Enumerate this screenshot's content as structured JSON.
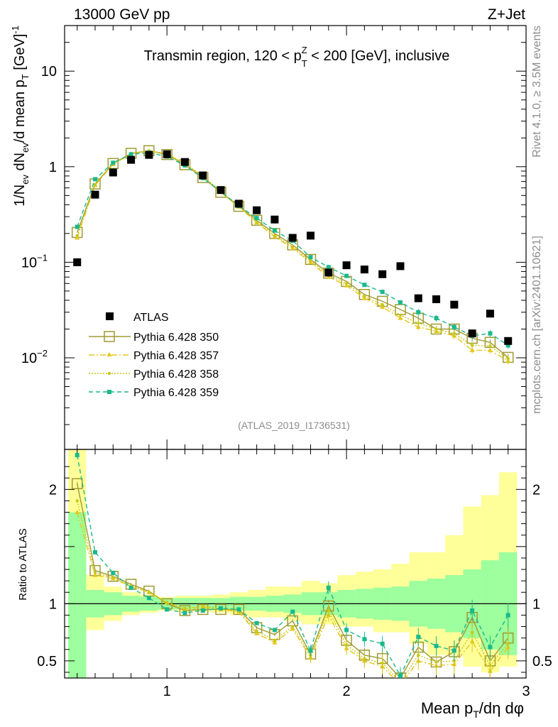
{
  "header": {
    "left": "13000 GeV pp",
    "right": "Z+Jet",
    "side_top": "Rivet 4.1.0, ≥ 3.5M events",
    "side_bottom": "mcplots.cern.ch [arXiv:2401.10621]",
    "analysis_tag": "(ATLAS_2019_I1736531)"
  },
  "colors": {
    "atlas": "#000000",
    "p350": "#a09a32",
    "p357": "#e6c619",
    "p358": "#c8c814",
    "p359": "#19b98c",
    "band_inner": "#9dff9d",
    "band_outer": "#ffff9a"
  },
  "chart_data": [
    {
      "type": "scatter",
      "title": "Transmin region, 120 < p_T^Z < 200 [GeV], inclusive",
      "title_parts": {
        "pre": "Transmin region, 120 < p",
        "sup": "Z",
        "sub": "T",
        "post": " < 200 [GeV], inclusive"
      },
      "ylabel": "1/N_ev dN_ev/d mean p_T [GeV]^-1",
      "yscale": "log",
      "ylim": [
        0.0011,
        30
      ],
      "xlim": [
        0.43,
        3.0
      ],
      "y_ticks": [
        {
          "v": 10,
          "label": "10"
        },
        {
          "v": 1,
          "label": "1"
        },
        {
          "v": 0.1,
          "label": "10",
          "exp": "−1"
        },
        {
          "v": 0.01,
          "label": "10",
          "exp": "−2"
        }
      ],
      "x": [
        0.5,
        0.6,
        0.7,
        0.8,
        0.9,
        1.0,
        1.1,
        1.2,
        1.3,
        1.4,
        1.5,
        1.6,
        1.7,
        1.8,
        1.9,
        2.0,
        2.1,
        2.2,
        2.3,
        2.4,
        2.5,
        2.6,
        2.7,
        2.8,
        2.9
      ],
      "series": [
        {
          "name": "ATLAS",
          "key": "atlas",
          "values": [
            0.1,
            0.51,
            0.87,
            1.18,
            1.33,
            1.35,
            1.12,
            0.81,
            0.57,
            0.41,
            0.35,
            0.28,
            0.18,
            0.19,
            0.078,
            0.093,
            0.084,
            0.075,
            0.091,
            0.042,
            0.041,
            0.036,
            0.018,
            0.029,
            0.015
          ]
        },
        {
          "name": "Pythia 6.428 350",
          "key": "p350",
          "values": [
            0.205,
            0.66,
            1.08,
            1.38,
            1.47,
            1.34,
            1.05,
            0.77,
            0.54,
            0.385,
            0.275,
            0.2,
            0.152,
            0.107,
            0.077,
            0.063,
            0.046,
            0.039,
            0.032,
            0.026,
            0.02,
            0.02,
            0.016,
            0.0145,
            0.0101
          ]
        },
        {
          "name": "Pythia 6.428 357",
          "key": "p357",
          "values": [
            0.18,
            0.64,
            1.06,
            1.36,
            1.46,
            1.36,
            1.06,
            0.79,
            0.54,
            0.38,
            0.26,
            0.185,
            0.14,
            0.1,
            0.07,
            0.057,
            0.042,
            0.034,
            0.026,
            0.021,
            0.019,
            0.017,
            0.012,
            0.012,
            0.0093
          ]
        },
        {
          "name": "Pythia 6.428 358",
          "key": "p358",
          "values": [
            0.19,
            0.65,
            1.07,
            1.37,
            1.47,
            1.37,
            1.07,
            0.8,
            0.55,
            0.385,
            0.265,
            0.19,
            0.145,
            0.104,
            0.073,
            0.06,
            0.044,
            0.036,
            0.028,
            0.023,
            0.02,
            0.018,
            0.0135,
            0.0133,
            0.0098
          ]
        },
        {
          "name": "Pythia 6.428 359",
          "key": "p359",
          "values": [
            0.235,
            0.74,
            1.1,
            1.35,
            1.4,
            1.28,
            1.03,
            0.76,
            0.55,
            0.39,
            0.29,
            0.215,
            0.168,
            0.113,
            0.089,
            0.072,
            0.058,
            0.049,
            0.038,
            0.03,
            0.026,
            0.021,
            0.017,
            0.018,
            0.0135
          ]
        }
      ]
    },
    {
      "type": "scatter",
      "ylabel": "Ratio to ATLAS",
      "xlabel": "Mean p_T/dη dφ",
      "xlabel_parts": {
        "pre": "Mean p",
        "sub": "T",
        "post": "/dη dφ"
      },
      "ylim": [
        0.35,
        2.35
      ],
      "xlim": [
        0.43,
        3.0
      ],
      "reference_line": 1,
      "x_ticks": [
        {
          "v": 1,
          "label": "1"
        },
        {
          "v": 2,
          "label": "2"
        },
        {
          "v": 3,
          "label": "3"
        }
      ],
      "y_ticks": [
        {
          "v": 2,
          "label": "2"
        },
        {
          "v": 1,
          "label": "1"
        },
        {
          "v": 0.5,
          "label": "0.5"
        }
      ],
      "bin_edges": [
        0.45,
        0.55,
        0.65,
        0.75,
        0.85,
        0.95,
        1.05,
        1.15,
        1.25,
        1.35,
        1.45,
        1.55,
        1.65,
        1.75,
        1.85,
        1.95,
        2.05,
        2.15,
        2.25,
        2.35,
        2.45,
        2.55,
        2.65,
        2.75,
        2.85,
        2.95
      ],
      "band_inner": [
        [
          0.3,
          1.8
        ],
        [
          0.88,
          1.12
        ],
        [
          0.9,
          1.1
        ],
        [
          0.93,
          1.07
        ],
        [
          0.94,
          1.06
        ],
        [
          0.95,
          1.05
        ],
        [
          0.95,
          1.05
        ],
        [
          0.95,
          1.05
        ],
        [
          0.95,
          1.05
        ],
        [
          0.94,
          1.06
        ],
        [
          0.94,
          1.06
        ],
        [
          0.93,
          1.07
        ],
        [
          0.92,
          1.08
        ],
        [
          0.9,
          1.1
        ],
        [
          0.9,
          1.1
        ],
        [
          0.88,
          1.12
        ],
        [
          0.87,
          1.13
        ],
        [
          0.86,
          1.14
        ],
        [
          0.85,
          1.15
        ],
        [
          0.8,
          1.2
        ],
        [
          0.78,
          1.22
        ],
        [
          0.75,
          1.25
        ],
        [
          0.7,
          1.3
        ],
        [
          0.6,
          1.38
        ],
        [
          0.55,
          1.45
        ]
      ],
      "band_outer": [
        [
          0.3,
          2.35
        ],
        [
          0.77,
          1.25
        ],
        [
          0.85,
          1.15
        ],
        [
          0.9,
          1.1
        ],
        [
          0.92,
          1.08
        ],
        [
          0.94,
          1.06
        ],
        [
          0.93,
          1.07
        ],
        [
          0.93,
          1.07
        ],
        [
          0.92,
          1.08
        ],
        [
          0.9,
          1.1
        ],
        [
          0.88,
          1.12
        ],
        [
          0.88,
          1.15
        ],
        [
          0.85,
          1.15
        ],
        [
          0.82,
          1.2
        ],
        [
          0.82,
          1.18
        ],
        [
          0.8,
          1.25
        ],
        [
          0.8,
          1.28
        ],
        [
          0.75,
          1.3
        ],
        [
          0.75,
          1.35
        ],
        [
          0.65,
          1.45
        ],
        [
          0.55,
          1.45
        ],
        [
          0.55,
          1.6
        ],
        [
          0.45,
          1.85
        ],
        [
          0.4,
          1.95
        ],
        [
          0.45,
          2.15
        ]
      ],
      "series": [
        {
          "name": "Pythia 6.428 350",
          "key": "p350",
          "values": [
            2.05,
            1.29,
            1.24,
            1.17,
            1.11,
            1.0,
            0.94,
            0.95,
            0.95,
            0.95,
            0.79,
            0.73,
            0.85,
            0.56,
            0.98,
            0.68,
            0.55,
            0.52,
            0.35,
            0.62,
            0.49,
            0.58,
            0.88,
            0.5,
            0.7
          ]
        },
        {
          "name": "Pythia 6.428 357",
          "key": "p357",
          "values": [
            1.8,
            1.25,
            1.22,
            1.15,
            1.1,
            1.01,
            0.95,
            0.97,
            0.95,
            0.93,
            0.74,
            0.66,
            0.78,
            0.53,
            0.9,
            0.61,
            0.5,
            0.45,
            0.29,
            0.5,
            0.46,
            0.47,
            0.67,
            0.41,
            0.62
          ]
        },
        {
          "name": "Pythia 6.428 358",
          "key": "p358",
          "values": [
            1.9,
            1.27,
            1.23,
            1.16,
            1.1,
            1.01,
            0.96,
            0.98,
            0.96,
            0.94,
            0.76,
            0.68,
            0.8,
            0.55,
            0.94,
            0.64,
            0.52,
            0.48,
            0.31,
            0.55,
            0.49,
            0.5,
            0.75,
            0.46,
            0.65
          ]
        },
        {
          "name": "Pythia 6.428 359",
          "key": "p359",
          "values": [
            2.3,
            1.45,
            1.27,
            1.14,
            1.05,
            0.95,
            0.92,
            0.94,
            0.96,
            0.95,
            0.83,
            0.77,
            0.93,
            0.59,
            1.14,
            0.77,
            0.69,
            0.65,
            0.37,
            0.71,
            0.63,
            0.59,
            0.94,
            0.62,
            0.9
          ]
        }
      ]
    }
  ]
}
